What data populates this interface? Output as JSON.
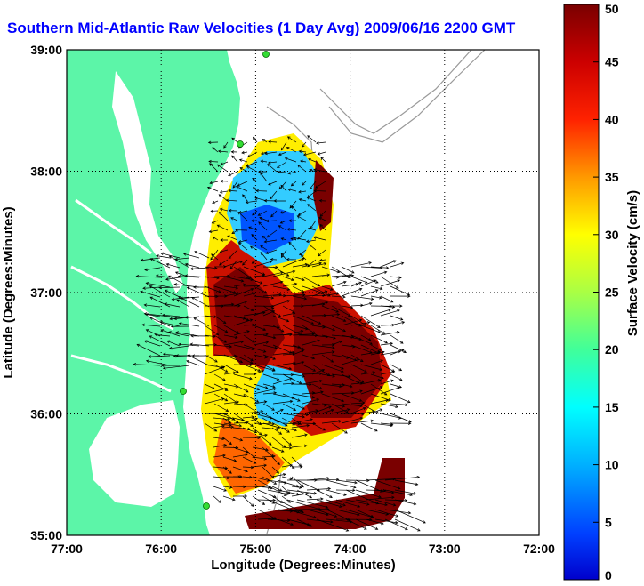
{
  "title": "Southern Mid-Atlantic Raw Velocities (1 Day Avg) 2009/06/16 2200 GMT",
  "map": {
    "xlabel": "Longitude (Degrees:Minutes)",
    "ylabel": "Latitude (Degrees:Minutes)",
    "x_ticks": [
      "77:00",
      "76:00",
      "75:00",
      "74:00",
      "73:00",
      "72:00"
    ],
    "y_ticks": [
      "39:00",
      "38:00",
      "37:00",
      "36:00",
      "35:00"
    ],
    "xlim": [
      -77,
      -72
    ],
    "ylim": [
      35,
      39
    ],
    "grid": "dotted",
    "land_color": "#5cf5a8",
    "contour_color": "#9a9a9a",
    "station_color": "#33dd33"
  },
  "colorbar": {
    "label": "Surface Velocity (cm/s)",
    "ticks": [
      "0",
      "5",
      "10",
      "15",
      "20",
      "25",
      "30",
      "35",
      "40",
      "45",
      "50"
    ],
    "range": [
      0,
      50
    ],
    "colormap": "jet"
  }
}
